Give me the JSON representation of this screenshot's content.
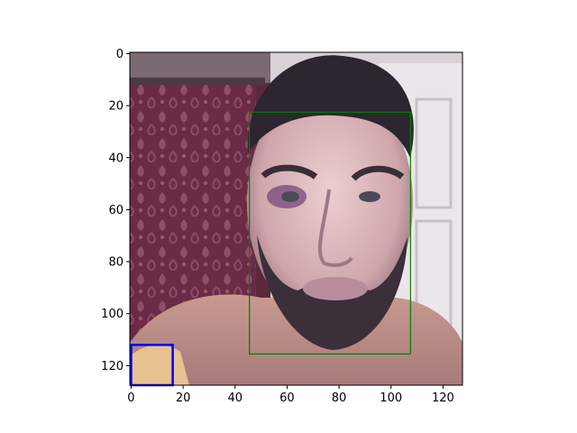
{
  "chart_data": {
    "type": "image",
    "image": {
      "width": 128,
      "height": 128,
      "content": "photograph of a man's face with a beard and a bruised left eye; dark damask curtain background on the left, white door on the right",
      "x_range": [
        -0.5,
        127.5
      ],
      "y_range": [
        127.5,
        -0.5
      ]
    },
    "x_ticks": [
      0,
      20,
      40,
      60,
      80,
      100,
      120
    ],
    "y_ticks": [
      0,
      20,
      40,
      60,
      80,
      100,
      120
    ],
    "xlabel": "",
    "ylabel": "",
    "title": "",
    "grid": false,
    "legend": "none",
    "boxes": [
      {
        "name": "face",
        "x0": 45.5,
        "y0": 22.5,
        "x1": 107.5,
        "y1": 115.5,
        "color": "#008000"
      },
      {
        "name": "region",
        "x0": 0,
        "y0": 112,
        "x1": 16,
        "y1": 127.5,
        "color": "#0000ff"
      }
    ]
  }
}
